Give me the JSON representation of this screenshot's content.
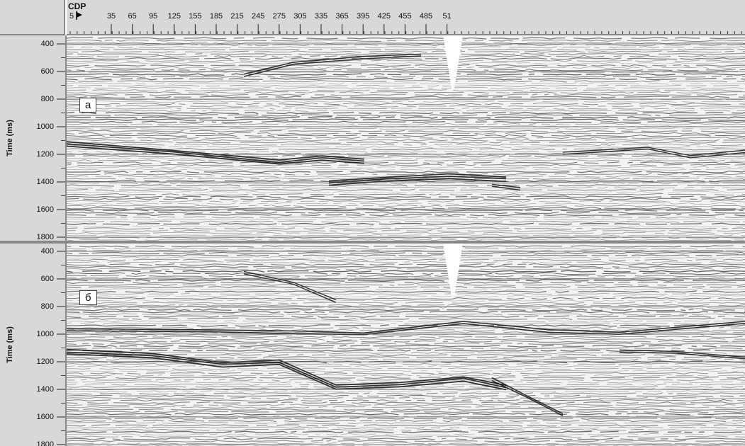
{
  "header": {
    "title": "CDP",
    "start_label": "5",
    "marker_icon": "flag-marker-icon",
    "ticks": [
      "35",
      "65",
      "95",
      "125",
      "155",
      "185",
      "215",
      "245",
      "275",
      "305",
      "335",
      "365",
      "395",
      "425",
      "455",
      "485",
      "51"
    ]
  },
  "panels": [
    {
      "label": "а",
      "axis_title": "Time (ms)",
      "time_labels": [
        "400",
        "600",
        "800",
        "1000",
        "1200",
        "1400",
        "1600",
        "1800"
      ]
    },
    {
      "label": "б",
      "axis_title": "Time (ms)",
      "time_labels": [
        "400",
        "600",
        "800",
        "1000",
        "1200",
        "1400",
        "1600",
        "1800"
      ]
    }
  ],
  "colors": {
    "axis_bg": "#d8d8d8",
    "axis_border": "#888888",
    "trace": "#141414",
    "section_bg": "#f3f3f3"
  }
}
